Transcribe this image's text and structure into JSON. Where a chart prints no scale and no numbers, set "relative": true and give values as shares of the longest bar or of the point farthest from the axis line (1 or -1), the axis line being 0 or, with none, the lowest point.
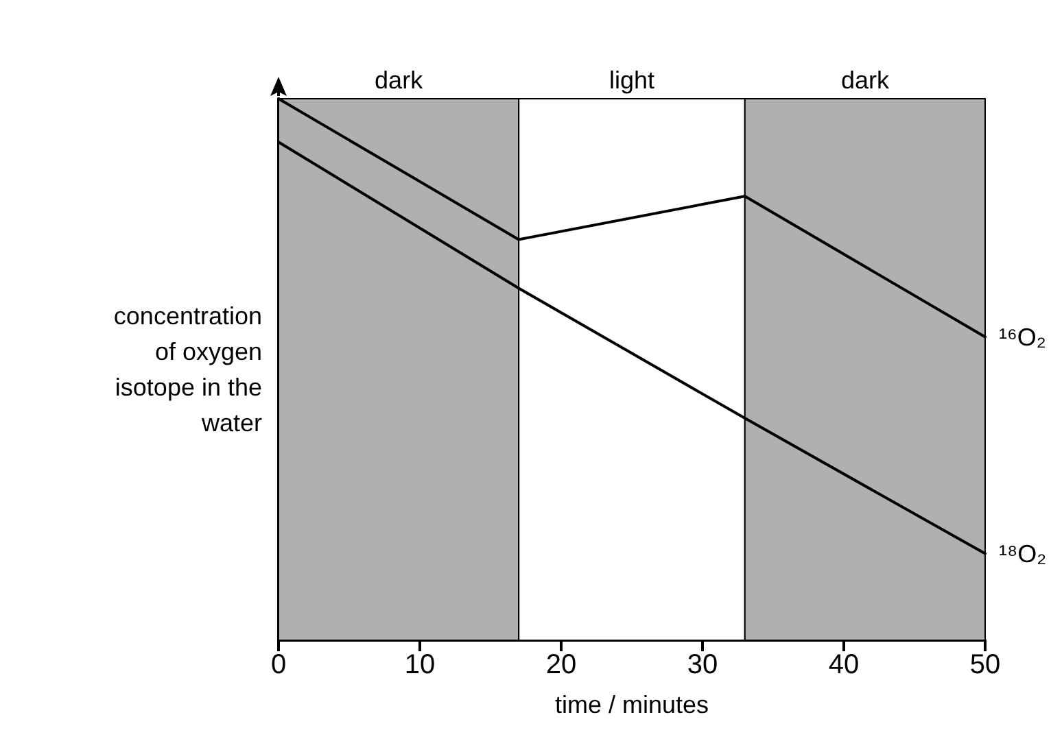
{
  "chart_data": {
    "type": "line",
    "relative": true,
    "xlabel": "time / minutes",
    "ylabel": "concentration of oxygen isotope in the water",
    "x": [
      0,
      17,
      33,
      50
    ],
    "xlim": [
      0,
      50
    ],
    "xticks": [
      0,
      10,
      20,
      30,
      40,
      50
    ],
    "grid": false,
    "legend": false,
    "marker": "none",
    "line_style": "solid",
    "series": [
      {
        "name": "¹⁶O₂",
        "color": "#000000",
        "values": [
          1,
          0.74,
          0.82,
          0.56
        ]
      },
      {
        "name": "¹⁸O₂",
        "color": "#000000",
        "values": [
          0.92,
          0.65,
          0.41,
          0.16
        ]
      }
    ],
    "bands": [
      {
        "axis": "x",
        "from": 0,
        "to": 17,
        "label": "dark",
        "color": "#b0b0b0"
      },
      {
        "axis": "x",
        "from": 17,
        "to": 33,
        "label": "light",
        "color": "#ffffff"
      },
      {
        "axis": "x",
        "from": 33,
        "to": 50,
        "label": "dark",
        "color": "#b0b0b0"
      }
    ]
  }
}
